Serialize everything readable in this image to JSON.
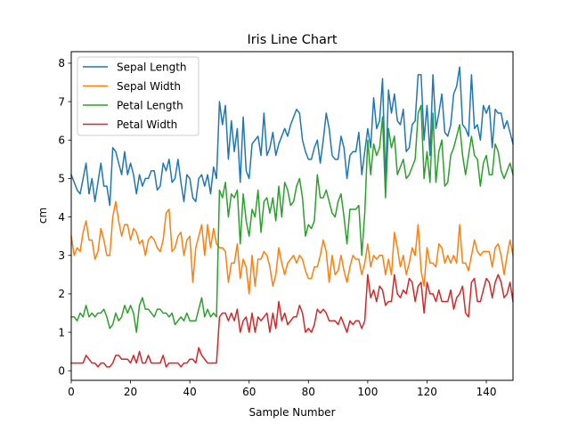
{
  "chart_data": {
    "type": "line",
    "title": "Iris Line Chart",
    "xlabel": "Sample Number",
    "ylabel": "cm",
    "xlim": [
      0,
      149
    ],
    "ylim": [
      -0.25,
      8.3
    ],
    "xticks": [
      0,
      20,
      40,
      60,
      80,
      100,
      120,
      140
    ],
    "yticks": [
      0,
      1,
      2,
      3,
      4,
      5,
      6,
      7,
      8
    ],
    "grid": false,
    "legend_position": "upper-left",
    "series": [
      {
        "name": "Sepal Length",
        "color": "#1f77b4",
        "values": [
          5.1,
          4.9,
          4.7,
          4.6,
          5.0,
          5.4,
          4.6,
          5.0,
          4.4,
          4.9,
          5.4,
          4.8,
          4.8,
          4.3,
          5.8,
          5.7,
          5.4,
          5.1,
          5.7,
          5.1,
          5.4,
          5.1,
          4.6,
          5.1,
          4.8,
          5.0,
          5.0,
          5.2,
          5.2,
          4.7,
          4.8,
          5.4,
          5.2,
          5.5,
          4.9,
          5.0,
          5.5,
          4.9,
          4.4,
          5.1,
          5.0,
          4.5,
          4.4,
          5.0,
          5.1,
          4.8,
          5.1,
          4.6,
          5.3,
          5.0,
          7.0,
          6.4,
          6.9,
          5.5,
          6.5,
          5.7,
          6.3,
          4.9,
          6.6,
          5.2,
          5.0,
          5.9,
          6.0,
          6.1,
          5.6,
          6.7,
          5.6,
          5.8,
          6.2,
          5.6,
          5.9,
          6.1,
          6.3,
          6.1,
          6.4,
          6.6,
          6.8,
          6.7,
          6.0,
          5.7,
          5.5,
          5.5,
          5.8,
          6.0,
          5.4,
          6.0,
          6.7,
          6.3,
          5.6,
          5.5,
          5.5,
          6.1,
          5.8,
          5.0,
          5.6,
          5.7,
          5.7,
          6.2,
          5.1,
          5.7,
          6.3,
          5.8,
          7.1,
          6.3,
          6.5,
          7.6,
          4.9,
          7.3,
          6.7,
          7.2,
          6.5,
          6.4,
          6.8,
          5.7,
          5.8,
          6.4,
          6.5,
          7.7,
          7.7,
          6.0,
          6.9,
          5.6,
          7.7,
          6.3,
          6.7,
          7.2,
          6.2,
          6.1,
          6.4,
          7.2,
          7.4,
          7.9,
          6.4,
          6.3,
          6.1,
          7.7,
          6.3,
          6.4,
          6.0,
          6.9,
          6.7,
          6.9,
          5.8,
          6.8,
          6.7,
          6.7,
          6.3,
          6.5,
          6.2,
          5.9
        ]
      },
      {
        "name": "Sepal Width",
        "color": "#ff7f0e",
        "values": [
          3.5,
          3.0,
          3.2,
          3.1,
          3.6,
          3.9,
          3.4,
          3.4,
          2.9,
          3.1,
          3.7,
          3.4,
          3.0,
          3.0,
          4.0,
          4.4,
          3.9,
          3.5,
          3.8,
          3.8,
          3.4,
          3.7,
          3.6,
          3.3,
          3.4,
          3.0,
          3.4,
          3.5,
          3.4,
          3.2,
          3.1,
          3.4,
          4.1,
          4.2,
          3.1,
          3.2,
          3.5,
          3.6,
          3.0,
          3.4,
          3.5,
          2.3,
          3.2,
          3.5,
          3.8,
          3.0,
          3.8,
          3.2,
          3.7,
          3.3,
          3.2,
          3.2,
          3.1,
          2.3,
          2.8,
          2.8,
          3.3,
          2.4,
          2.9,
          2.7,
          2.0,
          3.0,
          2.2,
          2.9,
          2.9,
          3.1,
          3.0,
          2.7,
          2.2,
          2.5,
          3.2,
          2.8,
          2.5,
          2.8,
          2.9,
          3.0,
          2.8,
          3.0,
          2.9,
          2.6,
          2.4,
          2.4,
          2.7,
          2.7,
          3.0,
          3.4,
          3.1,
          2.3,
          3.0,
          2.5,
          2.6,
          3.0,
          2.6,
          2.3,
          2.7,
          3.0,
          2.9,
          2.9,
          2.5,
          2.8,
          3.3,
          2.7,
          3.0,
          2.9,
          3.0,
          3.0,
          2.5,
          2.9,
          2.5,
          3.6,
          3.2,
          2.7,
          3.0,
          2.5,
          2.8,
          3.2,
          3.0,
          3.8,
          2.6,
          2.2,
          3.2,
          2.8,
          2.8,
          2.7,
          3.3,
          3.2,
          2.8,
          3.0,
          2.8,
          3.0,
          2.8,
          3.8,
          2.8,
          2.8,
          2.6,
          3.0,
          3.4,
          3.1,
          3.0,
          3.1,
          3.1,
          3.1,
          2.7,
          3.2,
          3.3,
          3.0,
          2.5,
          3.0,
          3.4,
          3.0
        ]
      },
      {
        "name": "Petal Length",
        "color": "#2ca02c",
        "values": [
          1.4,
          1.4,
          1.3,
          1.5,
          1.4,
          1.7,
          1.4,
          1.5,
          1.4,
          1.5,
          1.5,
          1.6,
          1.4,
          1.1,
          1.2,
          1.5,
          1.3,
          1.4,
          1.7,
          1.5,
          1.7,
          1.5,
          1.0,
          1.7,
          1.9,
          1.6,
          1.6,
          1.5,
          1.4,
          1.6,
          1.6,
          1.5,
          1.5,
          1.4,
          1.5,
          1.2,
          1.3,
          1.4,
          1.3,
          1.5,
          1.3,
          1.3,
          1.3,
          1.6,
          1.9,
          1.4,
          1.6,
          1.4,
          1.5,
          1.4,
          4.7,
          4.5,
          4.9,
          4.0,
          4.6,
          4.5,
          4.7,
          3.3,
          4.6,
          3.9,
          3.5,
          4.2,
          4.0,
          4.7,
          3.6,
          4.4,
          4.5,
          4.1,
          4.5,
          3.9,
          4.8,
          4.0,
          4.9,
          4.7,
          4.3,
          4.4,
          4.8,
          5.0,
          4.5,
          3.5,
          3.8,
          3.7,
          3.9,
          5.1,
          4.5,
          4.5,
          4.7,
          4.4,
          4.1,
          4.0,
          4.4,
          4.6,
          4.0,
          3.3,
          4.2,
          4.2,
          4.2,
          4.3,
          3.0,
          4.1,
          6.0,
          5.1,
          5.9,
          5.6,
          5.8,
          6.6,
          4.5,
          6.3,
          5.8,
          6.1,
          5.1,
          5.3,
          5.5,
          5.0,
          5.1,
          5.3,
          5.5,
          6.7,
          6.9,
          5.0,
          5.7,
          4.9,
          6.7,
          4.9,
          5.7,
          6.0,
          4.8,
          4.9,
          5.6,
          5.8,
          6.1,
          6.4,
          5.6,
          5.1,
          5.6,
          6.1,
          5.6,
          5.5,
          4.8,
          5.4,
          5.6,
          5.1,
          5.1,
          5.9,
          5.7,
          5.2,
          5.0,
          5.2,
          5.4,
          5.1
        ]
      },
      {
        "name": "Petal Width",
        "color": "#d62728",
        "values": [
          0.2,
          0.2,
          0.2,
          0.2,
          0.2,
          0.4,
          0.3,
          0.2,
          0.2,
          0.1,
          0.2,
          0.2,
          0.1,
          0.1,
          0.2,
          0.4,
          0.4,
          0.3,
          0.3,
          0.3,
          0.2,
          0.4,
          0.2,
          0.5,
          0.2,
          0.2,
          0.4,
          0.2,
          0.2,
          0.2,
          0.2,
          0.4,
          0.1,
          0.2,
          0.2,
          0.2,
          0.2,
          0.1,
          0.2,
          0.2,
          0.3,
          0.3,
          0.2,
          0.6,
          0.4,
          0.3,
          0.2,
          0.2,
          0.2,
          0.2,
          1.4,
          1.5,
          1.5,
          1.3,
          1.5,
          1.3,
          1.6,
          1.0,
          1.3,
          1.4,
          1.0,
          1.5,
          1.0,
          1.4,
          1.3,
          1.4,
          1.5,
          1.0,
          1.5,
          1.1,
          1.8,
          1.3,
          1.5,
          1.2,
          1.3,
          1.4,
          1.4,
          1.7,
          1.5,
          1.0,
          1.1,
          1.0,
          1.2,
          1.6,
          1.5,
          1.6,
          1.5,
          1.3,
          1.3,
          1.3,
          1.2,
          1.4,
          1.2,
          1.0,
          1.3,
          1.2,
          1.3,
          1.3,
          1.1,
          1.3,
          2.5,
          1.9,
          2.1,
          1.8,
          2.2,
          2.1,
          1.7,
          1.8,
          1.8,
          2.5,
          2.0,
          1.9,
          2.1,
          2.0,
          2.4,
          2.3,
          1.8,
          2.2,
          2.3,
          1.5,
          2.3,
          2.0,
          2.0,
          1.8,
          2.1,
          1.8,
          1.8,
          1.8,
          2.1,
          1.6,
          1.9,
          2.0,
          2.2,
          1.5,
          1.4,
          2.3,
          2.4,
          1.8,
          1.8,
          2.1,
          2.4,
          2.3,
          1.9,
          2.3,
          2.5,
          2.3,
          1.9,
          2.0,
          2.3,
          1.8
        ]
      }
    ]
  }
}
